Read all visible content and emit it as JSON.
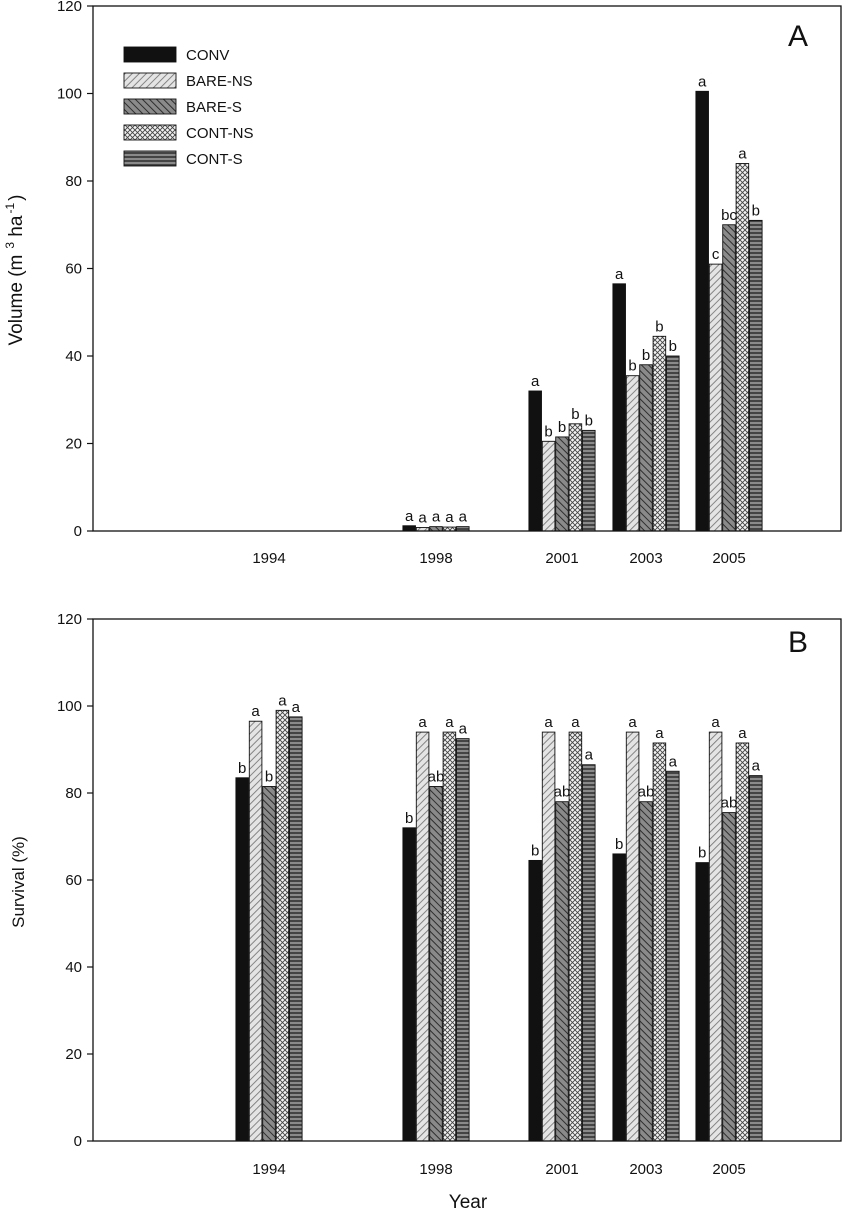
{
  "chart_data": [
    {
      "type": "bar",
      "panel": "A",
      "ylabel": "Volume (m",
      "ylabel_sup3": "3",
      "ylabel_mid": " ha",
      "ylabel_supneg1": "-1",
      "ylabel_end": ")",
      "xlabel": "",
      "ylim": [
        0,
        120
      ],
      "yticks": [
        0,
        20,
        40,
        60,
        80,
        100,
        120
      ],
      "categories": [
        "1994",
        "1998",
        "2001",
        "2003",
        "2005"
      ],
      "legend_position": "top-left",
      "series": [
        {
          "name": "CONV",
          "color": "#111111",
          "pattern": "solid",
          "values": [
            null,
            1.2,
            32,
            56.5,
            100.5
          ],
          "letters": [
            "",
            "a",
            "a",
            "a",
            "a"
          ]
        },
        {
          "name": "BARE-NS",
          "color": "#d8d8d8",
          "pattern": "diag-light",
          "values": [
            null,
            0.8,
            20.5,
            35.5,
            61
          ],
          "letters": [
            "",
            "a",
            "b",
            "b",
            "c"
          ]
        },
        {
          "name": "BARE-S",
          "color": "#6f6f6f",
          "pattern": "diag-dark",
          "values": [
            null,
            1.0,
            21.5,
            38,
            70
          ],
          "letters": [
            "",
            "a",
            "b",
            "b",
            "bc"
          ]
        },
        {
          "name": "CONT-NS",
          "color": "#ececec",
          "pattern": "crosshatch",
          "values": [
            null,
            0.9,
            24.5,
            44.5,
            84
          ],
          "letters": [
            "",
            "a",
            "b",
            "b",
            "a"
          ]
        },
        {
          "name": "CONT-S",
          "color": "#6a6a6a",
          "pattern": "horizontal",
          "values": [
            null,
            1.0,
            23,
            40,
            71
          ],
          "letters": [
            "",
            "a",
            "b",
            "b",
            "b"
          ]
        }
      ]
    },
    {
      "type": "bar",
      "panel": "B",
      "ylabel": "Survival (%)",
      "xlabel": "Year",
      "ylim": [
        0,
        120
      ],
      "yticks": [
        0,
        20,
        40,
        60,
        80,
        100,
        120
      ],
      "categories": [
        "1994",
        "1998",
        "2001",
        "2003",
        "2005"
      ],
      "series": [
        {
          "name": "CONV",
          "color": "#111111",
          "pattern": "solid",
          "values": [
            83.5,
            72,
            64.5,
            66,
            64
          ],
          "letters": [
            "b",
            "b",
            "b",
            "b",
            "b"
          ]
        },
        {
          "name": "BARE-NS",
          "color": "#d8d8d8",
          "pattern": "diag-light",
          "values": [
            96.5,
            94,
            94,
            94,
            94
          ],
          "letters": [
            "a",
            "a",
            "a",
            "a",
            "a"
          ]
        },
        {
          "name": "BARE-S",
          "color": "#6f6f6f",
          "pattern": "diag-dark",
          "values": [
            81.5,
            81.5,
            78,
            78,
            75.5
          ],
          "letters": [
            "b",
            "ab",
            "ab",
            "ab",
            "ab"
          ]
        },
        {
          "name": "CONT-NS",
          "color": "#ececec",
          "pattern": "crosshatch",
          "values": [
            99,
            94,
            94,
            91.5,
            91.5
          ],
          "letters": [
            "a",
            "a",
            "a",
            "a",
            "a"
          ]
        },
        {
          "name": "CONT-S",
          "color": "#6a6a6a",
          "pattern": "horizontal",
          "values": [
            97.5,
            92.5,
            86.5,
            85,
            84
          ],
          "letters": [
            "a",
            "a",
            "a",
            "a",
            "a"
          ]
        }
      ]
    }
  ]
}
